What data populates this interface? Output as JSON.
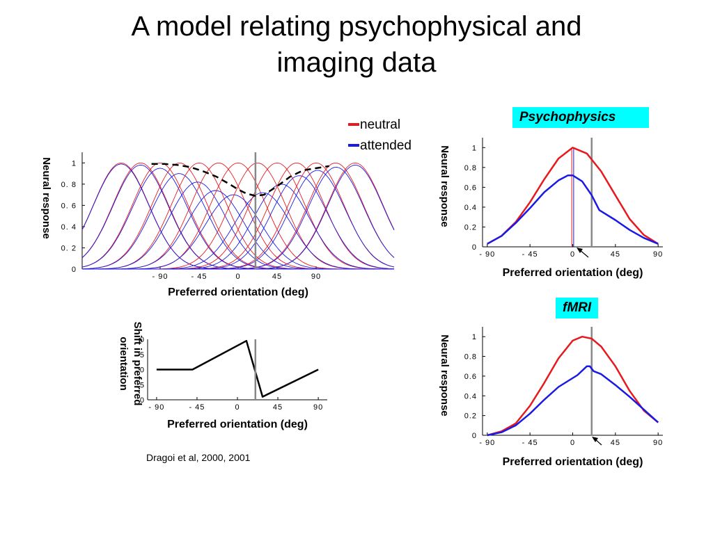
{
  "slide": {
    "title_line1": "A model relating psychophysical and",
    "title_line2": "imaging data",
    "citation": "Dragoi et al, 2000, 2001"
  },
  "tags": {
    "psychophysics": "Psychophysics",
    "fmri": "fMRI"
  },
  "legend": [
    {
      "label": "neutral",
      "color": "#e8191e"
    },
    {
      "label": "attended",
      "color": "#1a1ae6"
    }
  ],
  "colors": {
    "neutral": "#e8191e",
    "attended": "#1a1ae6",
    "marker": "#888888",
    "dashed": "#000000"
  },
  "chart_data": [
    {
      "id": "population-tuning",
      "type": "line",
      "xlabel": "Preferred orientation (deg)",
      "ylabel": "Neural response",
      "xticks": [
        -90,
        -45,
        0,
        45,
        90
      ],
      "yticks": [
        0,
        0.2,
        0.4,
        0.6,
        0.8,
        1
      ],
      "ytick_labels": [
        "0",
        "0. 2",
        "0. 4",
        "0. 6",
        "0. 8",
        "1"
      ],
      "xlim": [
        -180,
        180
      ],
      "ylim": [
        0,
        1.1
      ],
      "stimulus_orientation": 20,
      "neutral_centers": [
        -135,
        -112.5,
        -90,
        -67.5,
        -45,
        -22.5,
        0,
        22.5,
        45,
        67.5,
        90,
        112.5,
        135
      ],
      "attended_peaks": [
        0.99,
        0.98,
        0.95,
        0.9,
        0.82,
        0.74,
        0.7,
        0.72,
        0.8,
        0.88,
        0.93,
        0.96,
        0.98
      ],
      "tuning_width_deg": 32,
      "envelope": {
        "x": [
          -100,
          -85,
          -70,
          -55,
          -40,
          -25,
          -10,
          0,
          10,
          20,
          30,
          45,
          60,
          75,
          90,
          105
        ],
        "y": [
          0.99,
          0.99,
          0.98,
          0.96,
          0.92,
          0.87,
          0.8,
          0.75,
          0.71,
          0.69,
          0.7,
          0.78,
          0.87,
          0.93,
          0.95,
          0.97
        ]
      }
    },
    {
      "id": "shift",
      "type": "line",
      "xlabel": "Preferred orientation (deg)",
      "ylabel": "Shift in preferred orientation",
      "xticks": [
        -90,
        -45,
        0,
        45,
        90
      ],
      "xlim": [
        -100,
        100
      ],
      "ylim": [
        -10,
        10
      ],
      "ytick_labels": [
        "0",
        "5",
        "0",
        "5",
        "0"
      ],
      "stimulus_orientation": 20,
      "x": [
        -90,
        -50,
        10,
        28,
        90
      ],
      "y": [
        0,
        0,
        9.5,
        -9,
        0
      ]
    },
    {
      "id": "psychophysics",
      "type": "line",
      "xlabel": "Preferred orientation (deg)",
      "ylabel": "Neural response",
      "xticks": [
        -90,
        -45,
        0,
        45,
        90
      ],
      "yticks": [
        0,
        0.2,
        0.4,
        0.6,
        0.8,
        1
      ],
      "ytick_labels": [
        "0",
        "0.2",
        "0.4",
        "0.6",
        "0.8",
        "1"
      ],
      "xlim": [
        -95,
        95
      ],
      "ylim": [
        0,
        1.1
      ],
      "stimulus_orientation": 20,
      "series": [
        {
          "name": "neutral",
          "x": [
            -90,
            -75,
            -60,
            -45,
            -30,
            -15,
            0,
            15,
            30,
            45,
            60,
            75,
            90
          ],
          "y": [
            0.03,
            0.11,
            0.25,
            0.45,
            0.68,
            0.89,
            1.0,
            0.94,
            0.76,
            0.52,
            0.28,
            0.12,
            0.03
          ]
        },
        {
          "name": "attended",
          "x": [
            -90,
            -75,
            -60,
            -45,
            -30,
            -15,
            -5,
            0,
            10,
            20,
            28,
            45,
            60,
            75,
            90
          ],
          "y": [
            0.03,
            0.11,
            0.24,
            0.39,
            0.55,
            0.67,
            0.72,
            0.72,
            0.66,
            0.52,
            0.37,
            0.27,
            0.17,
            0.09,
            0.03
          ]
        }
      ],
      "vertical_marks": [
        {
          "x": -1,
          "color": "neutral"
        },
        {
          "x": 1,
          "color": "attended"
        }
      ]
    },
    {
      "id": "fmri",
      "type": "line",
      "xlabel": "Preferred orientation (deg)",
      "ylabel": "Neural response",
      "xticks": [
        -90,
        -45,
        0,
        45,
        90
      ],
      "yticks": [
        0,
        0.2,
        0.4,
        0.6,
        0.8,
        1
      ],
      "ytick_labels": [
        "0",
        "0.2",
        "0.4",
        "0.6",
        "0.8",
        "1"
      ],
      "xlim": [
        -95,
        95
      ],
      "ylim": [
        0,
        1.1
      ],
      "stimulus_orientation": 20,
      "series": [
        {
          "name": "neutral",
          "x": [
            -90,
            -75,
            -60,
            -45,
            -30,
            -15,
            0,
            10,
            20,
            30,
            45,
            60,
            75,
            90
          ],
          "y": [
            0.0,
            0.04,
            0.12,
            0.3,
            0.53,
            0.78,
            0.96,
            1.0,
            0.98,
            0.9,
            0.7,
            0.45,
            0.25,
            0.13
          ]
        },
        {
          "name": "attended",
          "x": [
            -90,
            -75,
            -60,
            -45,
            -30,
            -15,
            5,
            15,
            18,
            22,
            30,
            45,
            60,
            75,
            90
          ],
          "y": [
            0.0,
            0.03,
            0.1,
            0.22,
            0.36,
            0.49,
            0.61,
            0.7,
            0.7,
            0.65,
            0.62,
            0.51,
            0.39,
            0.26,
            0.13
          ]
        }
      ]
    }
  ]
}
